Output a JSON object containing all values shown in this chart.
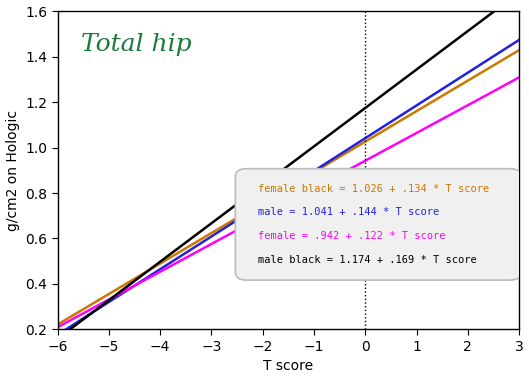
{
  "title": "Total hip",
  "title_color": "#1A7A3A",
  "title_fontsize": 18,
  "title_style": "italic",
  "xlabel": "T score",
  "ylabel": "g/cm2 on Hologic",
  "xlim": [
    -6,
    3
  ],
  "ylim": [
    0.2,
    1.6
  ],
  "xticks": [
    -6,
    -5,
    -4,
    -3,
    -2,
    -1,
    0,
    1,
    2,
    3
  ],
  "yticks": [
    0.2,
    0.4,
    0.6,
    0.8,
    1.0,
    1.2,
    1.4,
    1.6
  ],
  "lines": [
    {
      "label": "female black = 1.026 + .134 * T score",
      "intercept": 1.026,
      "slope": 0.134,
      "color": "#CC7700",
      "linewidth": 1.8
    },
    {
      "label": "male = 1.041 + .144 * T score",
      "intercept": 1.041,
      "slope": 0.144,
      "color": "#2222DD",
      "linewidth": 1.8
    },
    {
      "label": "female = .942 + .122 * T score",
      "intercept": 0.942,
      "slope": 0.122,
      "color": "#FF00FF",
      "linewidth": 1.8
    },
    {
      "label": "male black = 1.174 + .169 * T score",
      "intercept": 1.174,
      "slope": 0.169,
      "color": "#000000",
      "linewidth": 1.8
    }
  ],
  "vline_x": 0,
  "vline_style": ":",
  "vline_color": "#000000",
  "background_color": "#FFFFFF",
  "legend_label_colors": [
    "#CC7700",
    "#2222DD",
    "#FF00FF",
    "#000000"
  ],
  "legend_fontsize": 7.5,
  "figsize": [
    5.29,
    3.79
  ],
  "dpi": 100
}
